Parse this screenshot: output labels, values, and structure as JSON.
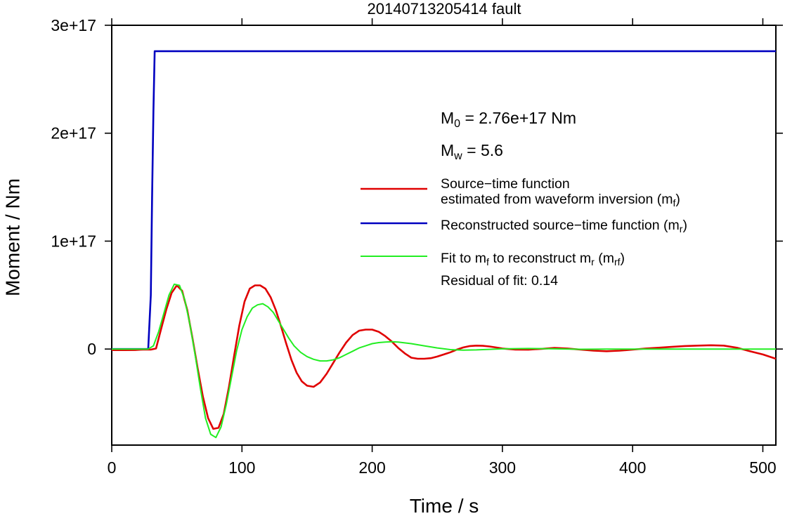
{
  "chart_data": {
    "type": "line",
    "title": "20140713205414 fault",
    "xlabel": "Time / s",
    "ylabel": "Moment / Nm",
    "xlim": [
      0,
      510
    ],
    "ylim": [
      -8.9e+16,
      3e+17
    ],
    "x_ticks": [
      0,
      100,
      200,
      300,
      400,
      500
    ],
    "x_tick_labels": [
      "0",
      "100",
      "200",
      "300",
      "400",
      "500"
    ],
    "y_ticks": [
      0,
      1e+17,
      2e+17,
      3e+17
    ],
    "y_tick_labels": [
      "0",
      "1e+17",
      "2e+17",
      "3e+17"
    ],
    "grid": false,
    "legend_placement": "right",
    "annotations": {
      "m0": {
        "main": "M",
        "sub": "0",
        "rest": " = 2.76e+17 Nm"
      },
      "mw": {
        "main": "M",
        "sub": "w",
        "rest": " = 5.6"
      },
      "residual": "Residual of fit: 0.14"
    },
    "legend": [
      {
        "color": "#e00000",
        "width": 2.6,
        "lines": [
          [
            {
              "t": "Source−time function"
            }
          ],
          [
            {
              "t": "estimated from waveform inversion (m"
            },
            {
              "t": "f",
              "sub": true
            },
            {
              "t": ")"
            }
          ]
        ]
      },
      {
        "color": "#0000c0",
        "width": 2.6,
        "lines": [
          [
            {
              "t": "Reconstructed source−time function (m"
            },
            {
              "t": "r",
              "sub": true
            },
            {
              "t": ")"
            }
          ]
        ]
      },
      {
        "color": "#22ee22",
        "width": 2,
        "lines": [
          [
            {
              "t": "Fit to m"
            },
            {
              "t": "f",
              "sub": true
            },
            {
              "t": " to reconstruct m"
            },
            {
              "t": "r",
              "sub": true
            },
            {
              "t": " (m"
            },
            {
              "t": "rf",
              "sub": true
            },
            {
              "t": ")"
            }
          ]
        ]
      }
    ],
    "series": [
      {
        "key": "mf",
        "color": "#e00000",
        "width": 2.6,
        "x": [
          0,
          10,
          18,
          22,
          26,
          30,
          34,
          38,
          42,
          46,
          50,
          54,
          58,
          62,
          66,
          70,
          74,
          78,
          82,
          86,
          90,
          94,
          98,
          102,
          106,
          110,
          114,
          118,
          122,
          126,
          130,
          134,
          138,
          142,
          146,
          150,
          155,
          160,
          165,
          170,
          175,
          180,
          185,
          190,
          195,
          200,
          205,
          210,
          215,
          220,
          225,
          230,
          235,
          240,
          245,
          250,
          255,
          260,
          265,
          270,
          275,
          280,
          285,
          290,
          295,
          300,
          310,
          320,
          330,
          340,
          350,
          360,
          370,
          380,
          390,
          400,
          410,
          420,
          430,
          440,
          450,
          460,
          470,
          480,
          490,
          500,
          510
        ],
        "y": [
          -1000000000000000.0,
          -1000000000000000.0,
          -900000000000000.0,
          -600000000000000.0,
          -400000000000000.0,
          -500000000000000.0,
          500000000000000.0,
          1.9e+16,
          3.7e+16,
          5.2e+16,
          5.9e+16,
          5.4e+16,
          3.6e+16,
          1e+16,
          -1.8e+16,
          -4.4e+16,
          -6.4e+16,
          -7.4e+16,
          -7.3e+16,
          -6e+16,
          -3.5e+16,
          -6000000000000000.0,
          2.2e+16,
          4.4e+16,
          5.6e+16,
          5.9e+16,
          5.9e+16,
          5.6e+16,
          4.8e+16,
          3.6e+16,
          2.1e+16,
          5000000000000000.0,
          -1e+16,
          -2.2e+16,
          -3e+16,
          -3.4e+16,
          -3.5e+16,
          -3.1e+16,
          -2.3e+16,
          -1.3e+16,
          -3000000000000000.0,
          6000000000000000.0,
          1.3e+16,
          1.7e+16,
          1.8e+16,
          1.8e+16,
          1.6e+16,
          1.2e+16,
          7000000000000000.0,
          1000000000000000.0,
          -4000000000000000.0,
          -8000000000000000.0,
          -9000000000000000.0,
          -9000000000000000.0,
          -8500000000000000.0,
          -7000000000000000.0,
          -5000000000000000.0,
          -3000000000000000.0,
          -500000000000000.0,
          1500000000000000.0,
          2800000000000000.0,
          3200000000000000.0,
          3000000000000000.0,
          2400000000000000.0,
          1500000000000000.0,
          500000000000000.0,
          -500000000000000.0,
          -600000000000000.0,
          200000000000000.0,
          1000000000000000.0,
          500000000000000.0,
          -500000000000000.0,
          -1500000000000000.0,
          -2000000000000000.0,
          -1500000000000000.0,
          -500000000000000.0,
          500000000000000.0,
          1200000000000000.0,
          2000000000000000.0,
          2800000000000000.0,
          3200000000000000.0,
          3500000000000000.0,
          3200000000000000.0,
          1200000000000000.0,
          -2000000000000000.0,
          -5000000000000000.0,
          -9000000000000000.0
        ]
      },
      {
        "key": "mr",
        "color": "#0000c0",
        "width": 2.6,
        "x": [
          0,
          28,
          30,
          31,
          32,
          33,
          510
        ],
        "y": [
          0,
          0,
          5e+16,
          1.4e+17,
          2.2e+17,
          2.76e+17,
          2.76e+17
        ]
      },
      {
        "key": "mrf",
        "color": "#22ee22",
        "width": 2,
        "x": [
          0,
          28,
          32,
          36,
          40,
          44,
          48,
          52,
          56,
          60,
          64,
          68,
          72,
          76,
          80,
          84,
          88,
          92,
          96,
          100,
          104,
          108,
          112,
          116,
          120,
          124,
          128,
          132,
          136,
          140,
          145,
          150,
          155,
          160,
          165,
          170,
          175,
          180,
          185,
          190,
          195,
          200,
          205,
          210,
          215,
          220,
          230,
          240,
          250,
          260,
          270,
          280,
          290,
          300,
          320,
          340,
          360,
          380,
          400,
          420,
          440,
          460,
          480,
          500,
          510
        ],
        "y": [
          0,
          0,
          3000000000000000.0,
          1.6e+16,
          3.3e+16,
          5e+16,
          6e+16,
          5.9e+16,
          4.6e+16,
          2.3e+16,
          -5000000000000000.0,
          -3.6e+16,
          -6.4e+16,
          -7.9e+16,
          -8.2e+16,
          -7.2e+16,
          -5.1e+16,
          -2.6e+16,
          -1000000000000000.0,
          1.8e+16,
          3e+16,
          3.8e+16,
          4.1e+16,
          4.2e+16,
          3.9e+16,
          3.4e+16,
          2.6e+16,
          1.8e+16,
          1e+16,
          3000000000000000.0,
          -3000000000000000.0,
          -7000000000000000.0,
          -9500000000000000.0,
          -1.1e+16,
          -1.1e+16,
          -1e+16,
          -8000000000000000.0,
          -5000000000000000.0,
          -2000000000000000.0,
          1000000000000000.0,
          3000000000000000.0,
          5000000000000000.0,
          6000000000000000.0,
          6500000000000000.0,
          6800000000000000.0,
          6500000000000000.0,
          5000000000000000.0,
          3000000000000000.0,
          1000000000000000.0,
          -500000000000000.0,
          -1000000000000000.0,
          -800000000000000.0,
          -300000000000000.0,
          200000000000000.0,
          500000000000000.0,
          200000000000000.0,
          -200000000000000.0,
          -100000000000000.0,
          0,
          0,
          0,
          0,
          0,
          0,
          0
        ]
      }
    ]
  }
}
